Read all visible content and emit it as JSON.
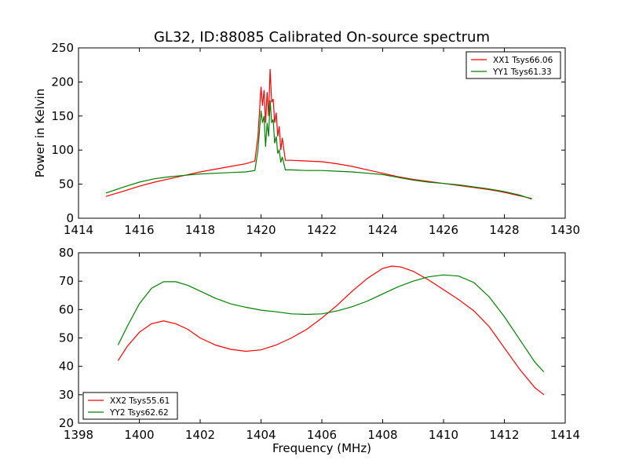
{
  "title": "GL32, ID:88085 Calibrated On-source spectrum",
  "colors": {
    "series1": "#ff0000",
    "series2": "#008000",
    "axes": "#000000",
    "background": "#ffffff"
  },
  "chart_data": [
    {
      "type": "line",
      "title": "GL32, ID:88085 Calibrated On-source spectrum",
      "xlabel": "",
      "ylabel": "Power in Kelvin",
      "xlim": [
        1414,
        1430
      ],
      "ylim": [
        0,
        250
      ],
      "xticks": [
        1414,
        1416,
        1418,
        1420,
        1422,
        1424,
        1426,
        1428,
        1430
      ],
      "yticks": [
        0,
        50,
        100,
        150,
        200,
        250
      ],
      "grid": false,
      "legend": "top-right",
      "series": [
        {
          "name": "XX1 Tsys66.06",
          "color": "#ff0000",
          "x": [
            1414.9,
            1415.5,
            1416.0,
            1416.5,
            1417.0,
            1417.5,
            1418.0,
            1418.5,
            1419.0,
            1419.5,
            1419.8,
            1419.9,
            1420.0,
            1420.05,
            1420.1,
            1420.15,
            1420.2,
            1420.25,
            1420.3,
            1420.35,
            1420.4,
            1420.45,
            1420.5,
            1420.55,
            1420.6,
            1420.65,
            1420.7,
            1420.8,
            1421.0,
            1421.5,
            1422.0,
            1422.5,
            1423.0,
            1423.5,
            1424.0,
            1424.5,
            1425.0,
            1425.5,
            1426.0,
            1426.5,
            1427.0,
            1427.5,
            1428.0,
            1428.5,
            1428.9
          ],
          "values": [
            32,
            40,
            47,
            53,
            58,
            63,
            68,
            72,
            76,
            80,
            84,
            120,
            193,
            165,
            188,
            140,
            185,
            150,
            219,
            170,
            175,
            140,
            155,
            120,
            135,
            100,
            118,
            85,
            85,
            84,
            83,
            80,
            76,
            71,
            66,
            61,
            57,
            54,
            51,
            48,
            45,
            42,
            38,
            33,
            29
          ]
        },
        {
          "name": "YY1 Tsys61.33",
          "color": "#008000",
          "x": [
            1414.9,
            1415.5,
            1416.0,
            1416.5,
            1417.0,
            1417.5,
            1418.0,
            1418.5,
            1419.0,
            1419.5,
            1419.8,
            1419.9,
            1420.0,
            1420.05,
            1420.1,
            1420.15,
            1420.2,
            1420.25,
            1420.3,
            1420.35,
            1420.4,
            1420.45,
            1420.5,
            1420.55,
            1420.6,
            1420.65,
            1420.7,
            1420.8,
            1421.0,
            1421.5,
            1422.0,
            1422.5,
            1423.0,
            1423.5,
            1424.0,
            1424.5,
            1425.0,
            1425.5,
            1426.0,
            1426.5,
            1427.0,
            1427.5,
            1428.0,
            1428.5,
            1428.9
          ],
          "values": [
            37,
            46,
            53,
            58,
            61,
            63,
            65,
            66,
            67,
            68,
            70,
            100,
            158,
            140,
            150,
            105,
            140,
            120,
            173,
            140,
            145,
            110,
            120,
            95,
            100,
            82,
            90,
            71,
            71,
            70,
            70,
            69,
            68,
            66,
            64,
            60,
            56,
            53,
            51,
            49,
            46,
            43,
            39,
            34,
            28
          ]
        }
      ]
    },
    {
      "type": "line",
      "title": "",
      "xlabel": "Frequency (MHz)",
      "ylabel": "",
      "xlim": [
        1398,
        1414
      ],
      "ylim": [
        20,
        80
      ],
      "xticks": [
        1398,
        1400,
        1402,
        1404,
        1406,
        1408,
        1410,
        1412,
        1414
      ],
      "yticks": [
        20,
        30,
        40,
        50,
        60,
        70,
        80
      ],
      "grid": false,
      "legend": "bottom-left",
      "series": [
        {
          "name": "XX2 Tsys55.61",
          "color": "#ff0000",
          "x": [
            1399.3,
            1399.6,
            1400.0,
            1400.4,
            1400.8,
            1401.2,
            1401.6,
            1402.0,
            1402.5,
            1403.0,
            1403.5,
            1404.0,
            1404.5,
            1405.0,
            1405.5,
            1406.0,
            1406.5,
            1407.0,
            1407.5,
            1408.0,
            1408.3,
            1408.6,
            1409.0,
            1409.5,
            1410.0,
            1410.5,
            1411.0,
            1411.5,
            1412.0,
            1412.5,
            1413.0,
            1413.3
          ],
          "values": [
            42,
            47,
            52,
            55,
            56,
            55,
            53,
            50,
            47.5,
            46,
            45.3,
            45.8,
            47.5,
            50,
            53,
            57,
            61.5,
            66.5,
            71,
            74.5,
            75.3,
            75,
            73.5,
            70.5,
            67,
            63.5,
            59.5,
            54,
            46.5,
            39,
            32.5,
            30
          ]
        },
        {
          "name": "YY2 Tsys62.62",
          "color": "#008000",
          "x": [
            1399.3,
            1399.6,
            1400.0,
            1400.4,
            1400.8,
            1401.2,
            1401.6,
            1402.0,
            1402.5,
            1403.0,
            1403.5,
            1404.0,
            1404.5,
            1405.0,
            1405.5,
            1406.0,
            1406.5,
            1407.0,
            1407.5,
            1408.0,
            1408.5,
            1409.0,
            1409.5,
            1410.0,
            1410.5,
            1411.0,
            1411.5,
            1412.0,
            1412.5,
            1413.0,
            1413.3
          ],
          "values": [
            47.5,
            54,
            62,
            67.5,
            69.8,
            69.8,
            68.5,
            66.5,
            64,
            62,
            60.8,
            59.8,
            59.2,
            58.5,
            58.3,
            58.5,
            59.5,
            61,
            63,
            65.5,
            68,
            70,
            71.5,
            72.2,
            71.8,
            69.5,
            64.5,
            57.5,
            49.5,
            41.5,
            38
          ]
        }
      ]
    }
  ]
}
